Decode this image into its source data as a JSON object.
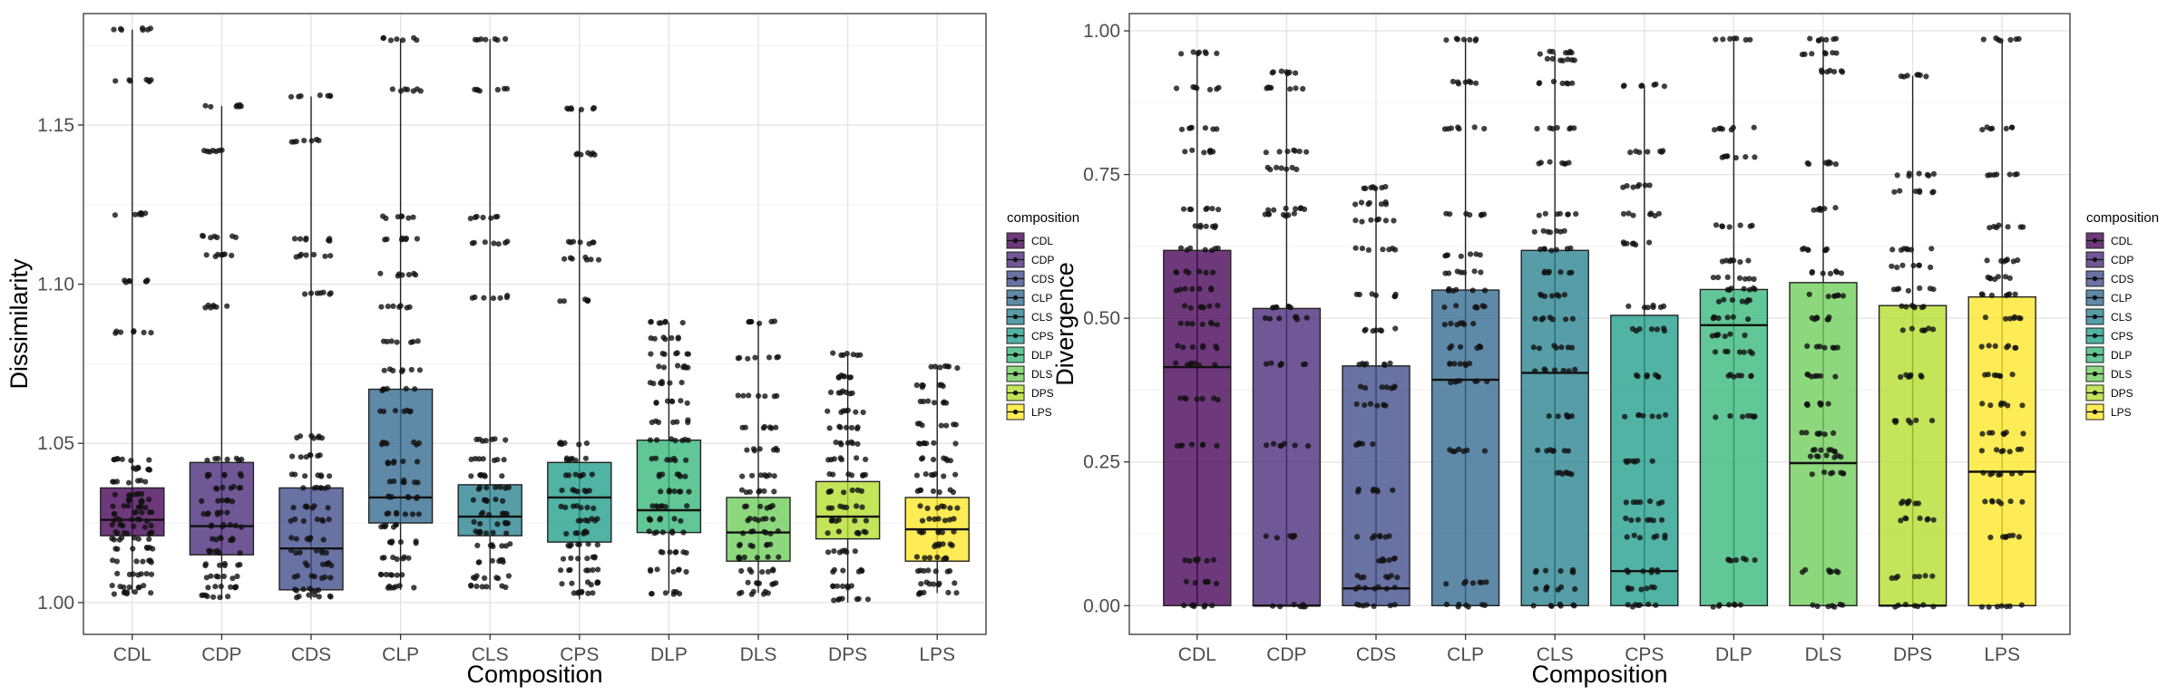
{
  "chart_data": [
    {
      "type": "box",
      "xlabel": "Composition",
      "ylabel": "Dissimilarity",
      "ylim": [
        0.99,
        1.185
      ],
      "yticks": [
        1.0,
        1.05,
        1.1,
        1.15
      ],
      "ytick_labels": [
        "1.00",
        "1.05",
        "1.10",
        "1.15"
      ],
      "grid": true,
      "legend": {
        "title": "composition",
        "position": "right"
      },
      "categories": [
        "CDL",
        "CDP",
        "CDS",
        "CLP",
        "CLS",
        "CPS",
        "DLP",
        "DLS",
        "DPS",
        "LPS"
      ],
      "colors": [
        "#440154",
        "#482878",
        "#3E4A89",
        "#31688E",
        "#26828E",
        "#1F9E89",
        "#35B779",
        "#6DCD59",
        "#B4DE2C",
        "#FDE725"
      ],
      "boxes": [
        {
          "q1": 1.021,
          "median": 1.026,
          "q3": 1.036,
          "lower": 1.003,
          "upper": 1.18,
          "points": [
            1.18,
            1.164,
            1.122,
            1.101,
            1.085,
            1.045,
            1.042,
            1.038,
            1.034,
            1.032,
            1.03,
            1.028,
            1.026,
            1.024,
            1.022,
            1.02,
            1.017,
            1.013,
            1.009,
            1.005,
            1.003
          ]
        },
        {
          "q1": 1.015,
          "median": 1.024,
          "q3": 1.044,
          "lower": 1.001,
          "upper": 1.156,
          "points": [
            1.156,
            1.142,
            1.115,
            1.109,
            1.093,
            1.045,
            1.04,
            1.036,
            1.032,
            1.028,
            1.024,
            1.02,
            1.016,
            1.012,
            1.008,
            1.005,
            1.002
          ]
        },
        {
          "q1": 1.004,
          "median": 1.017,
          "q3": 1.036,
          "lower": 1.001,
          "upper": 1.159,
          "points": [
            1.159,
            1.145,
            1.114,
            1.109,
            1.097,
            1.052,
            1.046,
            1.04,
            1.036,
            1.03,
            1.026,
            1.02,
            1.016,
            1.012,
            1.008,
            1.004,
            1.002
          ]
        },
        {
          "q1": 1.025,
          "median": 1.033,
          "q3": 1.067,
          "lower": 1.004,
          "upper": 1.177,
          "points": [
            1.177,
            1.161,
            1.121,
            1.114,
            1.103,
            1.093,
            1.082,
            1.073,
            1.067,
            1.06,
            1.05,
            1.044,
            1.038,
            1.033,
            1.028,
            1.024,
            1.019,
            1.014,
            1.009,
            1.005
          ]
        },
        {
          "q1": 1.021,
          "median": 1.027,
          "q3": 1.037,
          "lower": 1.004,
          "upper": 1.177,
          "points": [
            1.177,
            1.161,
            1.121,
            1.113,
            1.096,
            1.051,
            1.045,
            1.04,
            1.036,
            1.032,
            1.028,
            1.025,
            1.022,
            1.018,
            1.013,
            1.008,
            1.005
          ]
        },
        {
          "q1": 1.019,
          "median": 1.033,
          "q3": 1.044,
          "lower": 1.001,
          "upper": 1.155,
          "points": [
            1.155,
            1.141,
            1.113,
            1.108,
            1.095,
            1.05,
            1.045,
            1.04,
            1.035,
            1.03,
            1.026,
            1.022,
            1.018,
            1.014,
            1.01,
            1.006,
            1.003
          ]
        },
        {
          "q1": 1.022,
          "median": 1.029,
          "q3": 1.051,
          "lower": 1.003,
          "upper": 1.088,
          "points": [
            1.088,
            1.083,
            1.078,
            1.074,
            1.069,
            1.063,
            1.057,
            1.051,
            1.045,
            1.04,
            1.035,
            1.03,
            1.026,
            1.022,
            1.016,
            1.01,
            1.003
          ]
        },
        {
          "q1": 1.013,
          "median": 1.022,
          "q3": 1.033,
          "lower": 1.003,
          "upper": 1.088,
          "points": [
            1.088,
            1.077,
            1.065,
            1.055,
            1.048,
            1.04,
            1.035,
            1.03,
            1.026,
            1.022,
            1.018,
            1.014,
            1.01,
            1.006,
            1.003
          ]
        },
        {
          "q1": 1.02,
          "median": 1.027,
          "q3": 1.038,
          "lower": 1.0,
          "upper": 1.078,
          "points": [
            1.078,
            1.071,
            1.066,
            1.06,
            1.055,
            1.05,
            1.045,
            1.04,
            1.035,
            1.03,
            1.026,
            1.022,
            1.016,
            1.01,
            1.005,
            1.001
          ]
        },
        {
          "q1": 1.013,
          "median": 1.023,
          "q3": 1.033,
          "lower": 1.003,
          "upper": 1.074,
          "points": [
            1.074,
            1.068,
            1.063,
            1.056,
            1.05,
            1.045,
            1.04,
            1.035,
            1.03,
            1.026,
            1.022,
            1.018,
            1.014,
            1.01,
            1.006,
            1.003
          ]
        }
      ]
    },
    {
      "type": "box",
      "xlabel": "Composition",
      "ylabel": "Divergence",
      "ylim": [
        -0.05,
        1.03
      ],
      "yticks": [
        0.0,
        0.25,
        0.5,
        0.75,
        1.0
      ],
      "ytick_labels": [
        "0.00",
        "0.25",
        "0.50",
        "0.75",
        "1.00"
      ],
      "grid": true,
      "legend": {
        "title": "composition",
        "position": "right"
      },
      "categories": [
        "CDL",
        "CDP",
        "CDS",
        "CLP",
        "CLS",
        "CPS",
        "DLP",
        "DLS",
        "DPS",
        "LPS"
      ],
      "colors": [
        "#440154",
        "#482878",
        "#3E4A89",
        "#31688E",
        "#26828E",
        "#1F9E89",
        "#35B779",
        "#6DCD59",
        "#B4DE2C",
        "#FDE725"
      ],
      "boxes": [
        {
          "q1": 0.0,
          "median": 0.415,
          "q3": 0.618,
          "lower": 0.0,
          "upper": 0.962,
          "points": [
            0.962,
            0.9,
            0.83,
            0.79,
            0.69,
            0.66,
            0.62,
            0.58,
            0.55,
            0.52,
            0.49,
            0.45,
            0.42,
            0.36,
            0.28,
            0.08,
            0.04,
            0.0
          ]
        },
        {
          "q1": 0.0,
          "median": 0.0,
          "q3": 0.517,
          "lower": 0.0,
          "upper": 0.928,
          "points": [
            0.928,
            0.9,
            0.79,
            0.76,
            0.69,
            0.68,
            0.52,
            0.5,
            0.42,
            0.28,
            0.12,
            0.0
          ]
        },
        {
          "q1": 0.0,
          "median": 0.03,
          "q3": 0.417,
          "lower": 0.0,
          "upper": 0.728,
          "points": [
            0.728,
            0.7,
            0.67,
            0.62,
            0.54,
            0.48,
            0.42,
            0.38,
            0.35,
            0.28,
            0.2,
            0.12,
            0.08,
            0.05,
            0.03,
            0.0
          ]
        },
        {
          "q1": 0.0,
          "median": 0.393,
          "q3": 0.549,
          "lower": 0.0,
          "upper": 0.985,
          "points": [
            0.985,
            0.91,
            0.83,
            0.68,
            0.61,
            0.58,
            0.55,
            0.52,
            0.49,
            0.45,
            0.42,
            0.39,
            0.27,
            0.04,
            0.0
          ]
        },
        {
          "q1": 0.0,
          "median": 0.405,
          "q3": 0.618,
          "lower": 0.0,
          "upper": 0.962,
          "points": [
            0.962,
            0.95,
            0.91,
            0.83,
            0.77,
            0.68,
            0.65,
            0.62,
            0.58,
            0.54,
            0.5,
            0.45,
            0.41,
            0.33,
            0.27,
            0.23,
            0.06,
            0.03,
            0.0
          ]
        },
        {
          "q1": 0.0,
          "median": 0.06,
          "q3": 0.505,
          "lower": 0.0,
          "upper": 0.905,
          "points": [
            0.905,
            0.79,
            0.73,
            0.68,
            0.63,
            0.52,
            0.48,
            0.4,
            0.33,
            0.25,
            0.18,
            0.15,
            0.12,
            0.06,
            0.03,
            0.0
          ]
        },
        {
          "q1": 0.0,
          "median": 0.488,
          "q3": 0.55,
          "lower": 0.0,
          "upper": 0.985,
          "points": [
            0.985,
            0.83,
            0.78,
            0.66,
            0.6,
            0.57,
            0.55,
            0.53,
            0.5,
            0.47,
            0.44,
            0.4,
            0.33,
            0.08,
            0.0
          ]
        },
        {
          "q1": 0.0,
          "median": 0.248,
          "q3": 0.562,
          "lower": 0.0,
          "upper": 0.985,
          "points": [
            0.985,
            0.96,
            0.93,
            0.77,
            0.69,
            0.62,
            0.58,
            0.54,
            0.5,
            0.45,
            0.4,
            0.35,
            0.3,
            0.27,
            0.26,
            0.23,
            0.06,
            0.0
          ]
        },
        {
          "q1": 0.0,
          "median": 0.0,
          "q3": 0.522,
          "lower": 0.0,
          "upper": 0.922,
          "points": [
            0.922,
            0.75,
            0.72,
            0.62,
            0.59,
            0.55,
            0.52,
            0.48,
            0.4,
            0.32,
            0.18,
            0.15,
            0.05,
            0.0
          ]
        },
        {
          "q1": 0.0,
          "median": 0.233,
          "q3": 0.537,
          "lower": 0.0,
          "upper": 0.985,
          "points": [
            0.985,
            0.83,
            0.75,
            0.66,
            0.6,
            0.57,
            0.54,
            0.5,
            0.45,
            0.4,
            0.35,
            0.3,
            0.27,
            0.23,
            0.18,
            0.12,
            0.0
          ]
        }
      ]
    }
  ]
}
